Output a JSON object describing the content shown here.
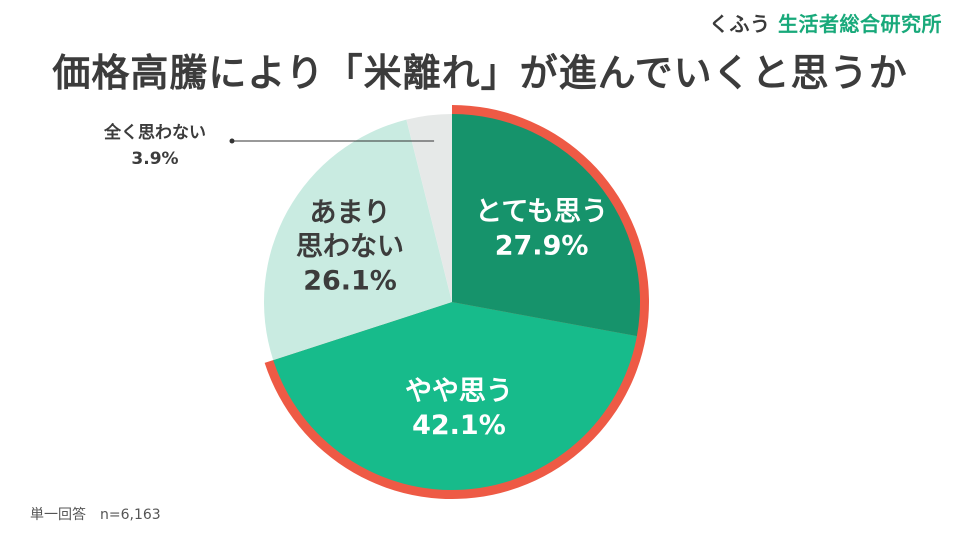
{
  "header": {
    "brand_prefix": "くふう",
    "brand_name": "生活者総合研究所"
  },
  "footnote": "単一回答　n=6,163",
  "chart_data": {
    "type": "pie",
    "title": "価格高騰により「米離れ」が進んでいくと思うか",
    "categories": [
      "とても思う",
      "やや思う",
      "あまり思わない",
      "全く思わない"
    ],
    "values": [
      27.9,
      42.1,
      26.1,
      3.9
    ],
    "value_labels": [
      "27.9%",
      "42.1%",
      "26.1%",
      "3.9%"
    ],
    "colors": [
      "#16936b",
      "#17bb8b",
      "#c9ebe1",
      "#e6e9e8"
    ],
    "label_colors": [
      "#ffffff",
      "#ffffff",
      "#3c3c3c",
      "#3c3c3c"
    ],
    "highlight_color": "#ee5a45",
    "highlight_categories": [
      "とても思う",
      "やや思う"
    ],
    "start_angle_deg": 0,
    "direction": "clockwise"
  }
}
